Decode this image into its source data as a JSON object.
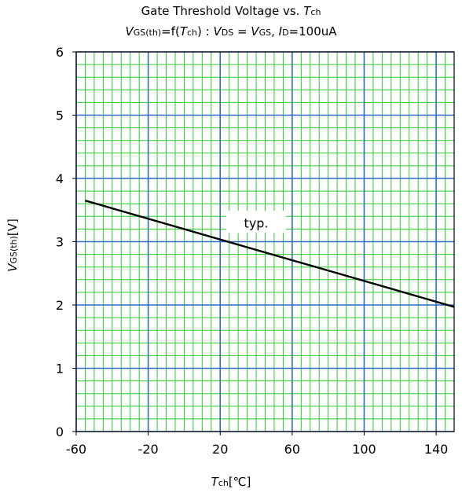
{
  "header": {
    "title_text": "Gate Threshold Voltage vs. ",
    "title_sym": "T",
    "title_sub": "ch",
    "sub": {
      "v1": "V",
      "v1_sub": "GS(th)",
      "eq": "=f(",
      "t": "T",
      "t_sub": "ch",
      "sep": ") : ",
      "v2": "V",
      "v2_sub": "DS",
      "eq2": " = ",
      "v3": "V",
      "v3_sub": "GS",
      "comma": ", ",
      "i": "I",
      "i_sub": "D",
      "cond": "=100uA"
    }
  },
  "axes": {
    "x": {
      "sym": "T",
      "sub": "ch",
      "unit": "[℃]"
    },
    "y": {
      "sym": "V",
      "sub": "GS(th)",
      "unit": "[V]"
    }
  },
  "chart_data": {
    "type": "line",
    "title": "Gate Threshold Voltage vs. Tch",
    "subtitle": "VGS(th)=f(Tch) : VDS = VGS, ID=100uA",
    "xlabel": "Tch[℃]",
    "ylabel": "VGS(th)[V]",
    "xlim": [
      -60,
      150
    ],
    "ylim": [
      0,
      6
    ],
    "x_ticks": [
      -60,
      -20,
      20,
      60,
      100,
      140
    ],
    "y_ticks": [
      0,
      1,
      2,
      3,
      4,
      5,
      6
    ],
    "x_minor_step": 5,
    "y_minor_step": 0.2,
    "grid": true,
    "series": [
      {
        "label": "typ.",
        "color": "#000000",
        "x": [
          -55,
          150
        ],
        "y": [
          3.65,
          1.97
        ]
      }
    ],
    "annotation": {
      "text": "typ.",
      "x": 40,
      "y": 3.3
    },
    "colors": {
      "major_grid": "#2f6bc6",
      "minor_grid": "#2ec92e",
      "line": "#000000"
    }
  }
}
